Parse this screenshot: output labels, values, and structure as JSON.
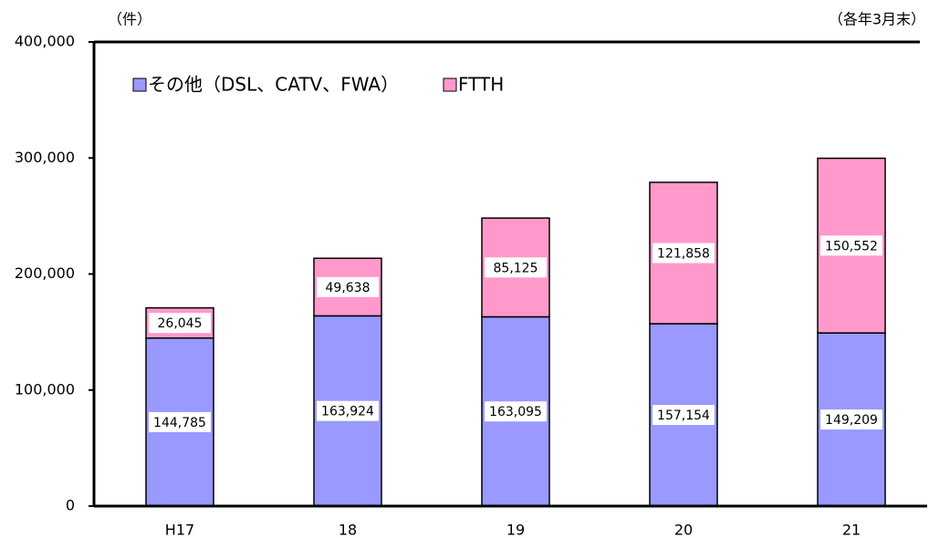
{
  "chart_data": {
    "type": "stacked_bar",
    "unit_label": "（件）",
    "note": "（各年3月末）",
    "categories": [
      "H17",
      "18",
      "19",
      "20",
      "21"
    ],
    "series": [
      {
        "name": "その他（DSL、CATV、FWA）",
        "color": "#9999ff",
        "values": [
          144785,
          163924,
          163095,
          157154,
          149209
        ],
        "value_labels": [
          "144,785",
          "163,924",
          "163,095",
          "157,154",
          "149,209"
        ]
      },
      {
        "name": "FTTH",
        "color": "#ff99cc",
        "values": [
          26045,
          49638,
          85125,
          121858,
          150552
        ],
        "value_labels": [
          "26,045",
          "49,638",
          "85,125",
          "121,858",
          "150,552"
        ]
      }
    ],
    "ylim": [
      0,
      400000
    ],
    "yticks": [
      {
        "value": 0,
        "label": "0"
      },
      {
        "value": 100000,
        "label": "100,000"
      },
      {
        "value": 200000,
        "label": "200,000"
      },
      {
        "value": 300000,
        "label": "300,000"
      },
      {
        "value": 400000,
        "label": "400,000"
      }
    ],
    "legend": "top-left"
  }
}
